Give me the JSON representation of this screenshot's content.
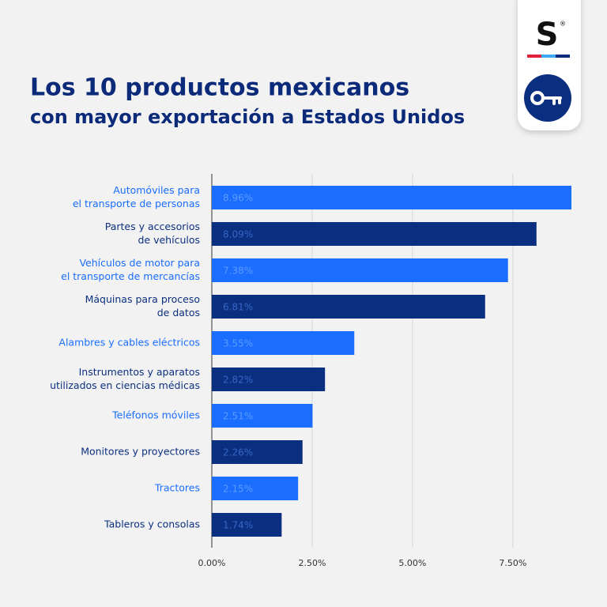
{
  "logo": {
    "text": "S",
    "mark": "®"
  },
  "chart_data": {
    "type": "hbar",
    "title": [
      "Los 10 productos mexicanos",
      "con mayor exportación a Estados Unidos"
    ],
    "categories": [
      [
        "Automóviles para",
        "el transporte de personas"
      ],
      [
        "Partes y accesorios",
        "de vehículos"
      ],
      [
        "Vehículos de motor para",
        "el transporte de mercancías"
      ],
      [
        "Máquinas para proceso",
        "de datos"
      ],
      [
        "Alambres y cables eléctricos"
      ],
      [
        "Instrumentos y aparatos",
        "utilizados en ciencias médicas"
      ],
      [
        "Teléfonos móviles"
      ],
      [
        "Monitores y proyectores"
      ],
      [
        "Tractores"
      ],
      [
        "Tableros y consolas"
      ]
    ],
    "values": [
      8.96,
      8.09,
      7.38,
      6.81,
      3.55,
      2.82,
      2.51,
      2.26,
      2.15,
      1.74
    ],
    "value_labels": [
      "8.96%",
      "8.09%",
      "7.38%",
      "6.81%",
      "3.55%",
      "2.82%",
      "2.51%",
      "2.26%",
      "2.15%",
      "1.74%"
    ],
    "colors": [
      "#1a6dff",
      "#0b2f80",
      "#1a6dff",
      "#0b2f80",
      "#1a6dff",
      "#0b2f80",
      "#1a6dff",
      "#0b2f80",
      "#1a6dff",
      "#0b2f80"
    ],
    "value_label_colors": [
      "#5c9bff",
      "#3566c4",
      "#5c9bff",
      "#3566c4",
      "#5c9bff",
      "#3566c4",
      "#5c9bff",
      "#3566c4",
      "#5c9bff",
      "#3566c4"
    ],
    "xlim": [
      0,
      9
    ],
    "xticks": [
      {
        "value": 0,
        "label": "0.00%"
      },
      {
        "value": 2.5,
        "label": "2.50%"
      },
      {
        "value": 5,
        "label": "5.00%"
      },
      {
        "value": 7.5,
        "label": "7.50%"
      }
    ],
    "grid": true
  }
}
